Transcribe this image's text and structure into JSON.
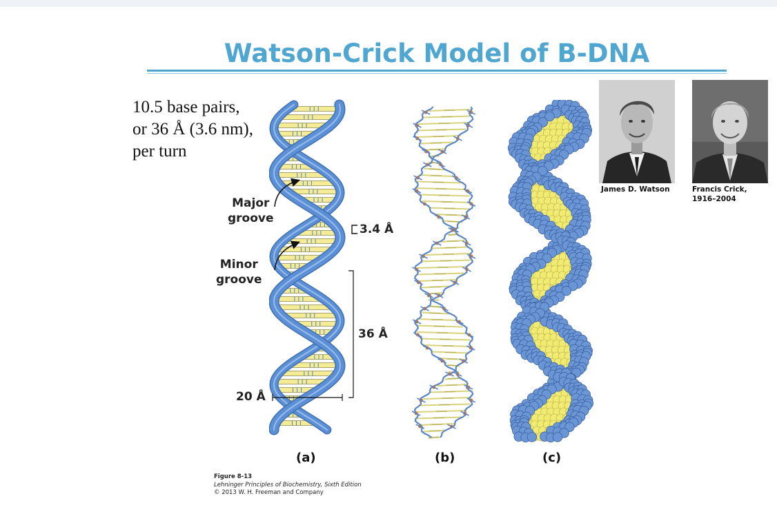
{
  "title": "Watson-Crick Model of B-DNA",
  "turn_note": [
    "10.5 base pairs,",
    "or 36 Å (3.6 nm),",
    "per turn"
  ],
  "labels": {
    "major_groove": [
      "Major",
      "groove"
    ],
    "minor_groove": [
      "Minor",
      "groove"
    ],
    "rise": "3.4 Å",
    "pitch": "36 Å",
    "width": "20 Å"
  },
  "panels": [
    "(a)",
    "(b)",
    "(c)"
  ],
  "caption": {
    "figure": "Figure 8-13",
    "book": "Lehninger Principles of Biochemistry, Sixth Edition",
    "copyright": "© 2013 W. H. Freeman and Company"
  },
  "people": [
    {
      "name": "James D. Watson",
      "dates": ""
    },
    {
      "name": "Francis Crick,",
      "dates": "1916–2004"
    }
  ],
  "colors": {
    "title": "#4fa6d1",
    "backbone": "#5b8fd6",
    "base_pair": "#f5ec95",
    "phosphate": "#d9692a"
  }
}
